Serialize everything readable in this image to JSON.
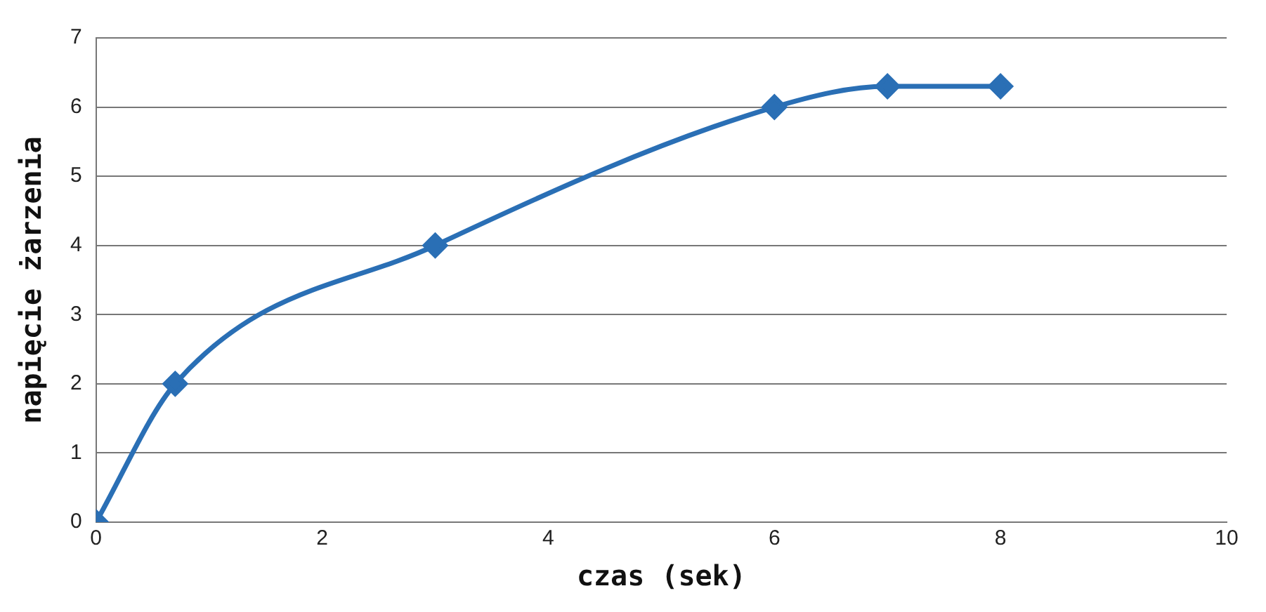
{
  "chart_data": {
    "type": "line",
    "xlabel": "czas (sek)",
    "ylabel": "napięcie żarzenia",
    "x": [
      0,
      0.7,
      3,
      6,
      7,
      8
    ],
    "series": [
      {
        "color": "#2a6fb5",
        "values": [
          0,
          2,
          4,
          6,
          6.3,
          6.3
        ]
      }
    ],
    "xlim": [
      0,
      10
    ],
    "xticks": [
      0,
      2,
      4,
      6,
      8,
      10
    ],
    "ylim": [
      0,
      7
    ],
    "yticks": [
      0,
      1,
      2,
      3,
      4,
      5,
      6,
      7
    ],
    "grid": "y",
    "marker": "diamond",
    "line_style": "solid",
    "legend": false
  }
}
